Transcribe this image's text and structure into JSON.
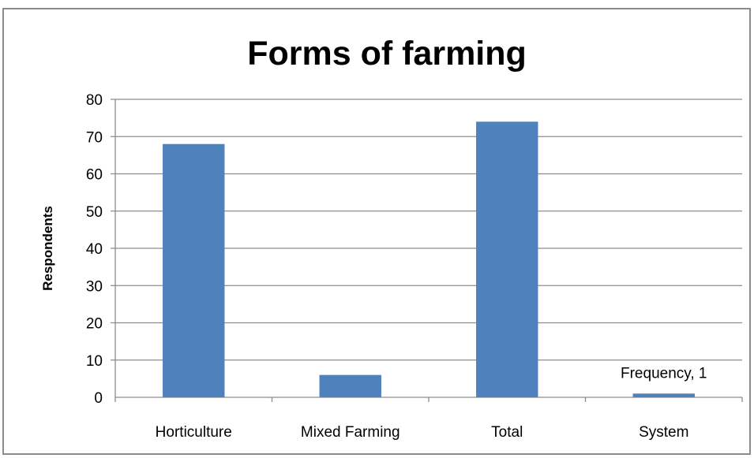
{
  "chart_data": {
    "type": "bar",
    "title": "Forms of farming",
    "xlabel": "",
    "ylabel": "Respondents",
    "categories": [
      "Horticulture",
      "Mixed Farming",
      "Total",
      "System"
    ],
    "series": [
      {
        "name": "Frequency",
        "values": [
          68,
          6,
          74,
          1
        ]
      }
    ],
    "ylim": [
      0,
      80
    ],
    "yticks": [
      0,
      10,
      20,
      30,
      40,
      50,
      60,
      70,
      80
    ],
    "grid": true,
    "bar_color": "#4f81bd",
    "data_labels": [
      {
        "category": "System",
        "text": "Frequency, 1"
      }
    ]
  }
}
